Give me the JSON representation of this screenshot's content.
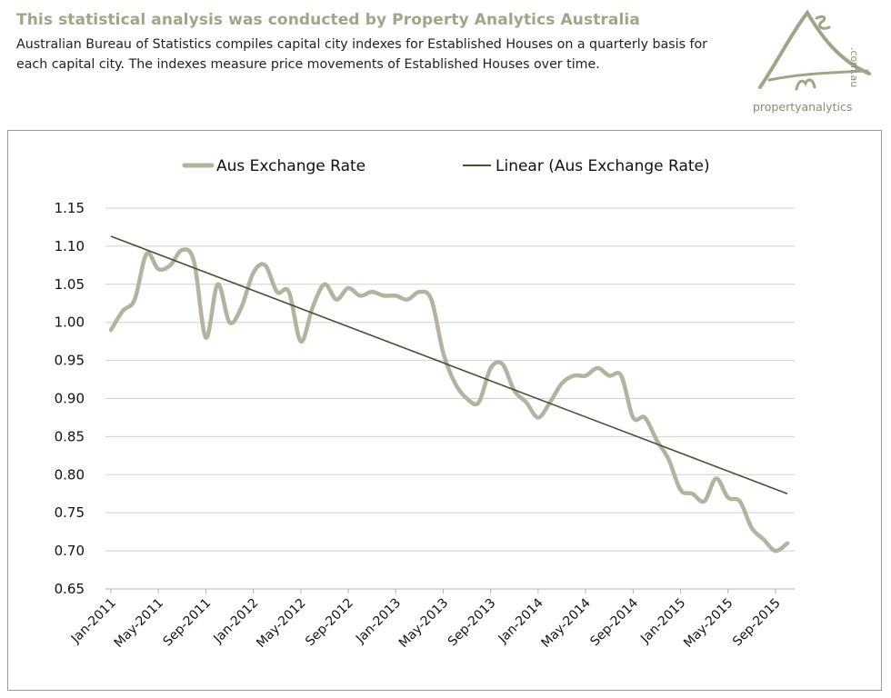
{
  "header": {
    "title": "This statistical analysis was conducted  by Property Analytics Australia",
    "description": "Australian Bureau of Statistics compiles capital city indexes for Established Houses on a quarterly basis for each capital city. The indexes measure price movements of Established Houses over time."
  },
  "logo": {
    "text": "propertyanalytics",
    "domain": ".com.au"
  },
  "chart_data": {
    "type": "line",
    "title": "",
    "xlabel": "",
    "ylabel": "",
    "ylim": [
      0.65,
      1.15
    ],
    "grid": true,
    "legend_position": "top",
    "y_ticks": [
      "1.15",
      "1.10",
      "1.05",
      "1.00",
      "0.95",
      "0.90",
      "0.85",
      "0.80",
      "0.75",
      "0.70",
      "0.65"
    ],
    "x_ticks": [
      "Jan-2011",
      "May-2011",
      "Sep-2011",
      "Jan-2012",
      "May-2012",
      "Sep-2012",
      "Jan-2013",
      "May-2013",
      "Sep-2013",
      "Jan-2014",
      "May-2014",
      "Sep-2014",
      "Jan-2015",
      "May-2015",
      "Sep-2015"
    ],
    "x": [
      "Jan-2011",
      "Feb-2011",
      "Mar-2011",
      "Apr-2011",
      "May-2011",
      "Jun-2011",
      "Jul-2011",
      "Aug-2011",
      "Sep-2011",
      "Oct-2011",
      "Nov-2011",
      "Dec-2011",
      "Jan-2012",
      "Feb-2012",
      "Mar-2012",
      "Apr-2012",
      "May-2012",
      "Jun-2012",
      "Jul-2012",
      "Aug-2012",
      "Sep-2012",
      "Oct-2012",
      "Nov-2012",
      "Dec-2012",
      "Jan-2013",
      "Feb-2013",
      "Mar-2013",
      "Apr-2013",
      "May-2013",
      "Jun-2013",
      "Jul-2013",
      "Aug-2013",
      "Sep-2013",
      "Oct-2013",
      "Nov-2013",
      "Dec-2013",
      "Jan-2014",
      "Feb-2014",
      "Mar-2014",
      "Apr-2014",
      "May-2014",
      "Jun-2014",
      "Jul-2014",
      "Aug-2014",
      "Sep-2014",
      "Oct-2014",
      "Nov-2014",
      "Dec-2014",
      "Jan-2015",
      "Feb-2015",
      "Mar-2015",
      "Apr-2015",
      "May-2015",
      "Jun-2015",
      "Jul-2015",
      "Aug-2015",
      "Sep-2015",
      "Oct-2015"
    ],
    "series": [
      {
        "name": "Aus Exchange Rate",
        "color": "#b3b3a0",
        "values": [
          0.99,
          1.015,
          1.03,
          1.09,
          1.07,
          1.075,
          1.095,
          1.08,
          0.98,
          1.05,
          1.0,
          1.02,
          1.065,
          1.075,
          1.04,
          1.04,
          0.975,
          1.02,
          1.05,
          1.03,
          1.045,
          1.035,
          1.04,
          1.035,
          1.035,
          1.03,
          1.04,
          1.03,
          0.96,
          0.92,
          0.9,
          0.895,
          0.94,
          0.945,
          0.91,
          0.895,
          0.875,
          0.895,
          0.92,
          0.93,
          0.93,
          0.94,
          0.93,
          0.93,
          0.875,
          0.875,
          0.845,
          0.82,
          0.78,
          0.775,
          0.765,
          0.795,
          0.77,
          0.765,
          0.73,
          0.715,
          0.7,
          0.71
        ]
      },
      {
        "name": "Linear (Aus Exchange Rate)",
        "color": "#4d4d3a",
        "values_endpoints": [
          1.113,
          0.775
        ]
      }
    ]
  }
}
